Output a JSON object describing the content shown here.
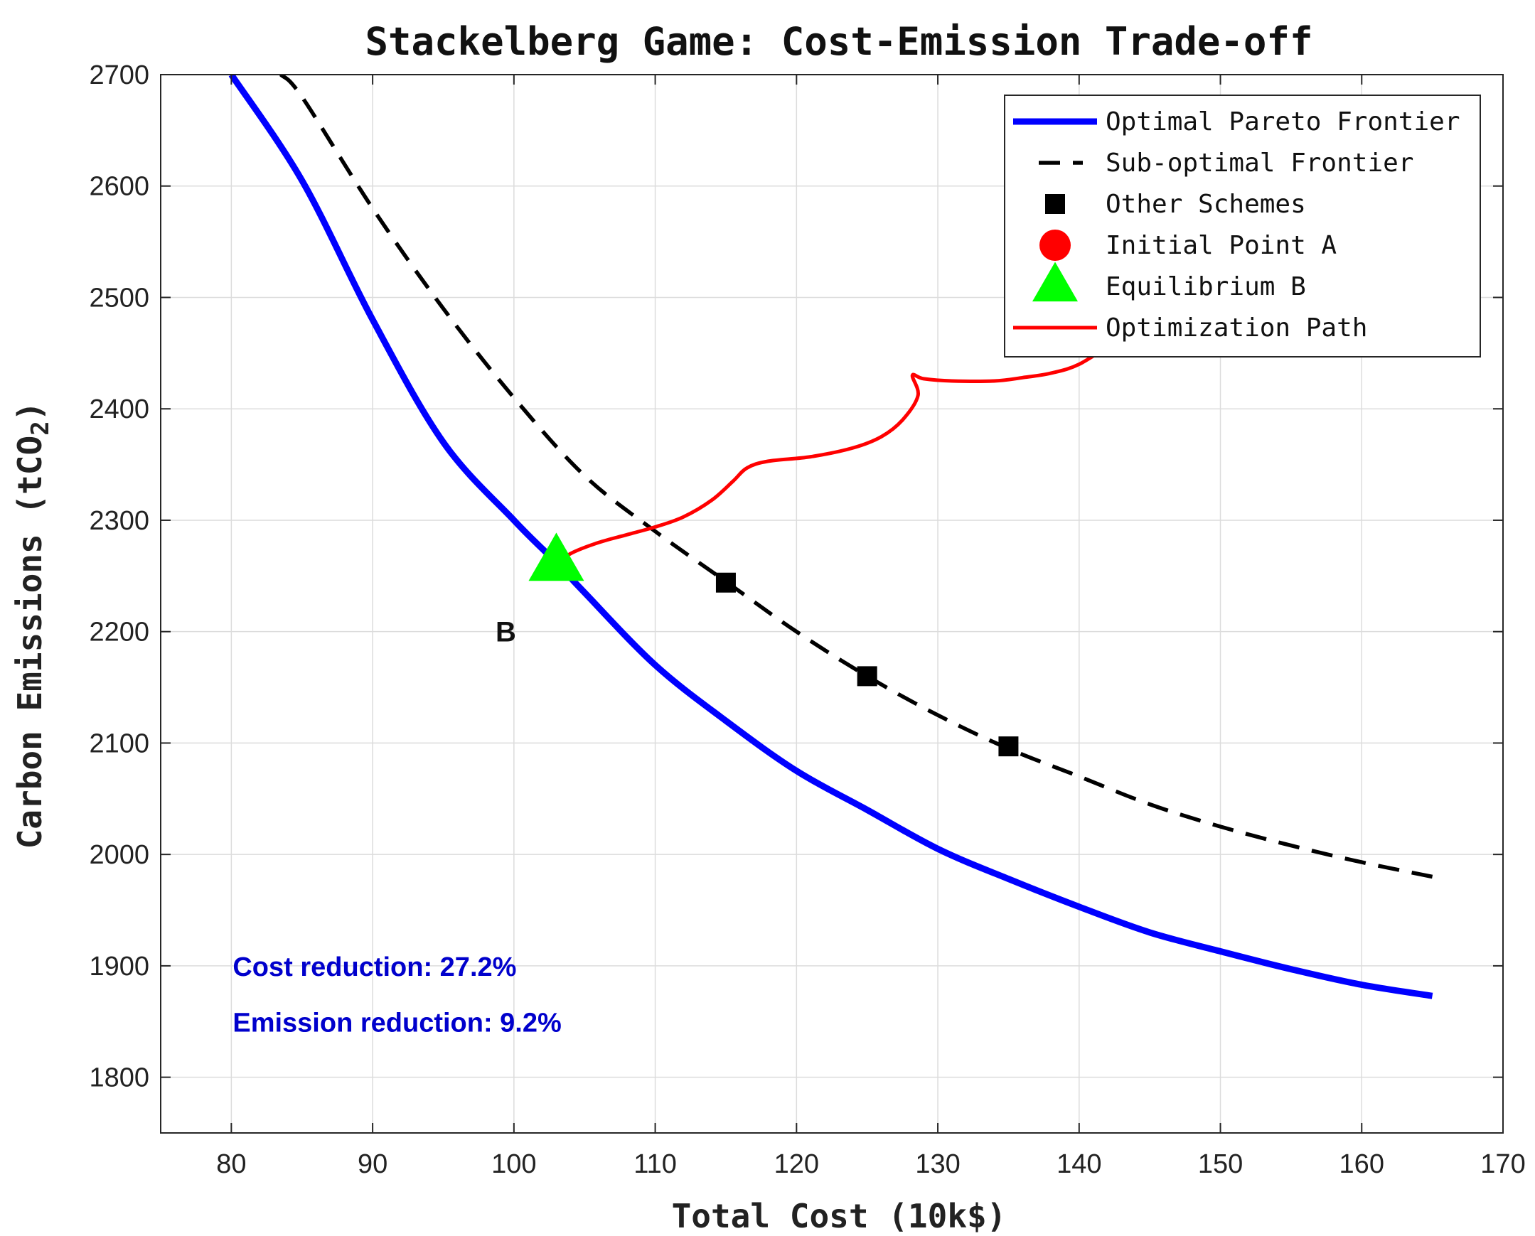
{
  "chart_data": {
    "type": "line",
    "title": "Stackelberg Game: Cost-Emission Trade-off",
    "xlabel": "Total Cost (10k$)",
    "ylabel": "Carbon Emissions (tCO",
    "ylabel_subscript": "2",
    "ylabel_close": ")",
    "xlim": [
      75,
      170
    ],
    "ylim": [
      1750,
      2700
    ],
    "xticks": [
      80,
      90,
      100,
      110,
      120,
      130,
      140,
      150,
      160,
      170
    ],
    "yticks": [
      1800,
      1900,
      2000,
      2100,
      2200,
      2300,
      2400,
      2500,
      2600,
      2700
    ],
    "grid": true,
    "legend_position": "top-right",
    "series": [
      {
        "name": "Optimal Pareto Frontier",
        "kind": "line",
        "color": "#0000ff",
        "style": "solid",
        "points": [
          [
            80,
            2700
          ],
          [
            85,
            2605
          ],
          [
            90,
            2480
          ],
          [
            95,
            2370
          ],
          [
            100,
            2300
          ],
          [
            103,
            2262
          ],
          [
            105,
            2235
          ],
          [
            110,
            2170
          ],
          [
            115,
            2120
          ],
          [
            120,
            2075
          ],
          [
            125,
            2040
          ],
          [
            130,
            2005
          ],
          [
            135,
            1978
          ],
          [
            140,
            1953
          ],
          [
            145,
            1930
          ],
          [
            150,
            1913
          ],
          [
            155,
            1897
          ],
          [
            160,
            1883
          ],
          [
            165,
            1873
          ]
        ]
      },
      {
        "name": "Sub-optimal Frontier",
        "kind": "line",
        "color": "#000000",
        "style": "dashed",
        "points": [
          [
            83.5,
            2700
          ],
          [
            85,
            2680
          ],
          [
            90,
            2580
          ],
          [
            95,
            2490
          ],
          [
            100,
            2410
          ],
          [
            105,
            2340
          ],
          [
            110,
            2290
          ],
          [
            115,
            2245
          ],
          [
            120,
            2200
          ],
          [
            125,
            2160
          ],
          [
            130,
            2125
          ],
          [
            135,
            2095
          ],
          [
            140,
            2070
          ],
          [
            145,
            2045
          ],
          [
            150,
            2025
          ],
          [
            155,
            2008
          ],
          [
            160,
            1993
          ],
          [
            165,
            1980
          ]
        ]
      },
      {
        "name": "Other Schemes",
        "kind": "marker",
        "marker": "square",
        "color": "#000000",
        "points": [
          [
            115,
            2244
          ],
          [
            125,
            2160
          ],
          [
            135,
            2097
          ]
        ]
      },
      {
        "name": "Initial Point A",
        "kind": "marker",
        "marker": "circle",
        "color": "#ff0000",
        "points": []
      },
      {
        "name": "Equilibrium B",
        "kind": "marker",
        "marker": "triangle",
        "color": "#00ff00",
        "points": [
          [
            103,
            2262
          ]
        ]
      },
      {
        "name": "Optimization Path",
        "kind": "line",
        "color": "#ff0000",
        "style": "solid",
        "points": [
          [
            103,
            2260
          ],
          [
            104,
            2270
          ],
          [
            106,
            2280
          ],
          [
            108,
            2287
          ],
          [
            110,
            2294
          ],
          [
            112,
            2303
          ],
          [
            114,
            2318
          ],
          [
            115.5,
            2335
          ],
          [
            116.5,
            2347
          ],
          [
            118,
            2353
          ],
          [
            121,
            2357
          ],
          [
            124,
            2365
          ],
          [
            126,
            2375
          ],
          [
            127.5,
            2390
          ],
          [
            128.6,
            2412
          ],
          [
            128.2,
            2430
          ],
          [
            129,
            2427
          ],
          [
            131,
            2425
          ],
          [
            134,
            2425
          ],
          [
            136,
            2428
          ],
          [
            138,
            2432
          ],
          [
            140,
            2440
          ],
          [
            142.5,
            2460
          ]
        ]
      }
    ],
    "annotations": [
      {
        "text": "B",
        "x": 98.7,
        "y": 2200,
        "color": "#111111"
      },
      {
        "text": "Cost reduction: 27.2%",
        "x": 80.1,
        "y": 1900,
        "color": "#0000cc"
      },
      {
        "text": "Emission reduction: 9.2%",
        "x": 80.1,
        "y": 1850,
        "color": "#0000cc"
      }
    ]
  }
}
